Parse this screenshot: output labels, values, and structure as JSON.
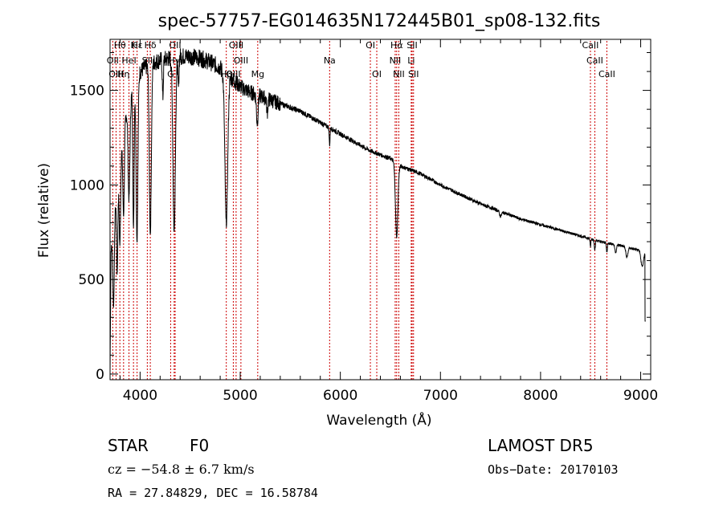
{
  "chart_data": {
    "type": "line",
    "title": "spec-57757-EG014635N172445B01_sp08-132.fits",
    "xlabel": "Wavelength (Å)",
    "ylabel": "Flux (relative)",
    "xlim": [
      3700,
      9100
    ],
    "ylim": [
      -30,
      1770
    ],
    "xticks": [
      4000,
      5000,
      6000,
      7000,
      8000,
      9000
    ],
    "yticks": [
      0,
      500,
      1000,
      1500
    ],
    "grid": false,
    "series": [
      {
        "continuum": [
          [
            3700,
            0
          ],
          [
            3710,
            650
          ],
          [
            3730,
            760
          ],
          [
            3750,
            880
          ],
          [
            3780,
            1000
          ],
          [
            3800,
            1150
          ],
          [
            3850,
            1350
          ],
          [
            3900,
            1450
          ],
          [
            3950,
            1550
          ],
          [
            4000,
            1600
          ],
          [
            4050,
            1620
          ],
          [
            4100,
            1640
          ],
          [
            4200,
            1660
          ],
          [
            4300,
            1670
          ],
          [
            4400,
            1680
          ],
          [
            4500,
            1680
          ],
          [
            4600,
            1670
          ],
          [
            4700,
            1650
          ],
          [
            4800,
            1620
          ],
          [
            4900,
            1570
          ],
          [
            5000,
            1520
          ],
          [
            5100,
            1490
          ],
          [
            5200,
            1470
          ],
          [
            5300,
            1450
          ],
          [
            5400,
            1430
          ],
          [
            5500,
            1410
          ],
          [
            5600,
            1390
          ],
          [
            5700,
            1360
          ],
          [
            5800,
            1330
          ],
          [
            5900,
            1300
          ],
          [
            6000,
            1270
          ],
          [
            6100,
            1240
          ],
          [
            6200,
            1210
          ],
          [
            6300,
            1180
          ],
          [
            6400,
            1160
          ],
          [
            6500,
            1140
          ],
          [
            6600,
            1100
          ],
          [
            6700,
            1080
          ],
          [
            6800,
            1060
          ],
          [
            6900,
            1030
          ],
          [
            7000,
            1000
          ],
          [
            7200,
            950
          ],
          [
            7400,
            900
          ],
          [
            7600,
            860
          ],
          [
            7800,
            820
          ],
          [
            8000,
            790
          ],
          [
            8200,
            760
          ],
          [
            8400,
            730
          ],
          [
            8600,
            700
          ],
          [
            8800,
            680
          ],
          [
            9000,
            650
          ],
          [
            9050,
            640
          ]
        ],
        "absorptions": [
          [
            3735,
            0.55,
            7
          ],
          [
            3771,
            0.45,
            6
          ],
          [
            3798,
            0.4,
            7
          ],
          [
            3835,
            0.35,
            8
          ],
          [
            3889,
            0.35,
            9
          ],
          [
            3934,
            0.5,
            6
          ],
          [
            3969,
            0.55,
            9
          ],
          [
            4102,
            0.55,
            10
          ],
          [
            4227,
            0.12,
            5
          ],
          [
            4340,
            0.55,
            12
          ],
          [
            4383,
            0.1,
            5
          ],
          [
            4861,
            0.5,
            14
          ],
          [
            5170,
            0.1,
            8
          ],
          [
            5270,
            0.05,
            6
          ],
          [
            5893,
            0.07,
            4
          ],
          [
            6563,
            0.35,
            12
          ],
          [
            7600,
            0.03,
            10
          ],
          [
            8498,
            0.06,
            4
          ],
          [
            8542,
            0.07,
            5
          ],
          [
            8662,
            0.07,
            5
          ],
          [
            8750,
            0.06,
            8
          ],
          [
            8862,
            0.08,
            10
          ],
          [
            9015,
            0.12,
            12
          ]
        ]
      }
    ],
    "lines": [
      {
        "label": "Hθ",
        "wave": 3798,
        "row": 0
      },
      {
        "label": "K",
        "wave": 3934,
        "row": 0
      },
      {
        "label": "Hε",
        "wave": 3970,
        "row": 0
      },
      {
        "label": "Hδ",
        "wave": 4102,
        "row": 0
      },
      {
        "label": "OII",
        "wave": 4350,
        "row": 0
      },
      {
        "label": "OIII",
        "wave": 4959,
        "row": 0
      },
      {
        "label": "OI",
        "wave": 6300,
        "row": 0
      },
      {
        "label": "Hα",
        "wave": 6563,
        "row": 0
      },
      {
        "label": "SII",
        "wave": 6717,
        "row": 0
      },
      {
        "label": "CaII",
        "wave": 8498,
        "row": 0
      },
      {
        "label": "OII",
        "wave": 3727,
        "row": 1
      },
      {
        "label": "HeI",
        "wave": 3889,
        "row": 1
      },
      {
        "label": "SII",
        "wave": 4072,
        "row": 1
      },
      {
        "label": "Hγ",
        "wave": 4340,
        "row": 1
      },
      {
        "label": "OIII",
        "wave": 5007,
        "row": 1
      },
      {
        "label": "Na",
        "wave": 5893,
        "row": 1
      },
      {
        "label": "NII",
        "wave": 6548,
        "row": 1
      },
      {
        "label": "Li",
        "wave": 6708,
        "row": 1
      },
      {
        "label": "CaII",
        "wave": 8542,
        "row": 1
      },
      {
        "label": "OIII",
        "wave": 3760,
        "row": 2
      },
      {
        "label": "Hη",
        "wave": 3835,
        "row": 2
      },
      {
        "label": "G",
        "wave": 4305,
        "row": 2
      },
      {
        "label": "Hβ",
        "wave": 4861,
        "row": 2
      },
      {
        "label": "OIII",
        "wave": 4931,
        "row": 2
      },
      {
        "label": "Mg",
        "wave": 5175,
        "row": 2
      },
      {
        "label": "OI",
        "wave": 6364,
        "row": 2
      },
      {
        "label": "NII",
        "wave": 6584,
        "row": 2
      },
      {
        "label": "SII",
        "wave": 6731,
        "row": 2
      },
      {
        "label": "CaII",
        "wave": 8662,
        "row": 2
      }
    ],
    "line_color": "#cc0000"
  },
  "info": {
    "class": "STAR",
    "subclass": "F0",
    "survey": "LAMOST DR5",
    "cz": "cz = −54.8 ± 6.7 km/s",
    "obs_date": "Obs−Date: 20170103",
    "coords": "RA =  27.84829, DEC =  16.58784"
  }
}
